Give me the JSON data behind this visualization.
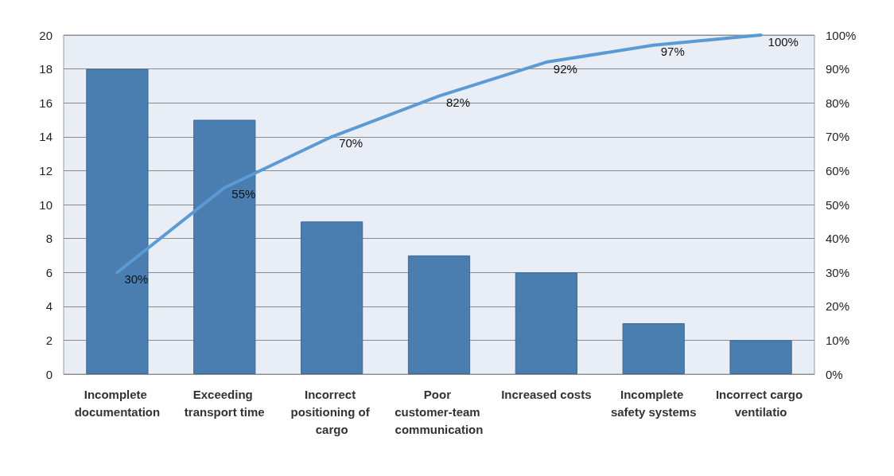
{
  "chart_data": {
    "type": "bar",
    "categories": [
      "Incomplete documentation",
      "Exceeding transport time",
      "Incorrect positioning of cargo",
      "Poor customer-team communication",
      "Increased costs",
      "Incomplete safety systems",
      "Incorrect cargo ventilatio"
    ],
    "series": [
      {
        "color": "#4a7db0",
        "values": [
          18,
          15,
          9,
          7,
          6,
          3,
          2
        ]
      },
      {
        "type": "line",
        "axis": "y2",
        "color": "#5b9bd5",
        "values": [
          30,
          55,
          70,
          82,
          92,
          97,
          100
        ],
        "value_labels": [
          "30%",
          "55%",
          "70%",
          "82%",
          "92%",
          "97%",
          "100%"
        ]
      }
    ],
    "ylim": [
      0,
      20
    ],
    "yticks": [
      0,
      2,
      4,
      6,
      8,
      10,
      12,
      14,
      16,
      18,
      20
    ],
    "y2lim": [
      0,
      100
    ],
    "y2ticks": [
      {
        "value": 0,
        "label": "0%"
      },
      {
        "value": 10,
        "label": "10%"
      },
      {
        "value": 20,
        "label": "20%"
      },
      {
        "value": 30,
        "label": "30%"
      },
      {
        "value": 40,
        "label": "40%"
      },
      {
        "value": 50,
        "label": "50%"
      },
      {
        "value": 60,
        "label": "60%"
      },
      {
        "value": 70,
        "label": "70%"
      },
      {
        "value": 80,
        "label": "80%"
      },
      {
        "value": 90,
        "label": "90%"
      },
      {
        "value": 100,
        "label": "100%"
      }
    ],
    "grid": "y",
    "marker": "none"
  }
}
